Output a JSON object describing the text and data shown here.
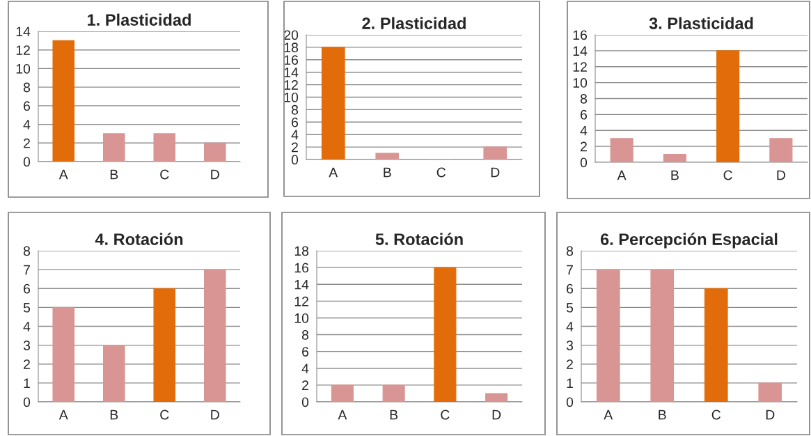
{
  "chart_data": [
    {
      "type": "bar",
      "title": "1. Plasticidad",
      "categories": [
        "A",
        "B",
        "C",
        "D"
      ],
      "values": [
        13,
        3,
        3,
        2
      ],
      "colors": [
        "#e36c0a",
        "#d99594",
        "#d99594",
        "#d99594"
      ],
      "ylim": [
        0,
        14
      ],
      "yticks": [
        0,
        2,
        4,
        6,
        8,
        10,
        12,
        14
      ],
      "grid": "y"
    },
    {
      "type": "bar",
      "title": "2. Plasticidad",
      "categories": [
        "A",
        "B",
        "C",
        "D"
      ],
      "values": [
        18,
        1,
        0,
        2
      ],
      "colors": [
        "#e36c0a",
        "#d99594",
        "#d99594",
        "#d99594"
      ],
      "ylim": [
        0,
        20
      ],
      "yticks": [
        0,
        2,
        4,
        6,
        8,
        10,
        12,
        14,
        16,
        18,
        20
      ],
      "grid": "y"
    },
    {
      "type": "bar",
      "title": "3. Plasticidad",
      "categories": [
        "A",
        "B",
        "C",
        "D"
      ],
      "values": [
        3,
        1,
        14,
        3
      ],
      "colors": [
        "#d99594",
        "#d99594",
        "#e36c0a",
        "#d99594"
      ],
      "ylim": [
        0,
        16
      ],
      "yticks": [
        0,
        2,
        4,
        6,
        8,
        10,
        12,
        14,
        16
      ],
      "grid": "y"
    },
    {
      "type": "bar",
      "title": "4. Rotación",
      "categories": [
        "A",
        "B",
        "C",
        "D"
      ],
      "values": [
        5,
        3,
        6,
        7
      ],
      "colors": [
        "#d99594",
        "#d99594",
        "#e36c0a",
        "#d99594"
      ],
      "ylim": [
        0,
        8
      ],
      "yticks": [
        0,
        1,
        2,
        3,
        4,
        5,
        6,
        7,
        8
      ],
      "grid": "y"
    },
    {
      "type": "bar",
      "title": "5. Rotación",
      "categories": [
        "A",
        "B",
        "C",
        "D"
      ],
      "values": [
        2,
        2,
        16,
        1
      ],
      "colors": [
        "#d99594",
        "#d99594",
        "#e36c0a",
        "#d99594"
      ],
      "ylim": [
        0,
        18
      ],
      "yticks": [
        0,
        2,
        4,
        6,
        8,
        10,
        12,
        14,
        16,
        18
      ],
      "grid": "y"
    },
    {
      "type": "bar",
      "title": "6. Percepción Espacial",
      "categories": [
        "A",
        "B",
        "C",
        "D"
      ],
      "values": [
        7,
        7,
        6,
        1
      ],
      "colors": [
        "#d99594",
        "#d99594",
        "#e36c0a",
        "#d99594"
      ],
      "ylim": [
        0,
        8
      ],
      "yticks": [
        0,
        1,
        2,
        3,
        4,
        5,
        6,
        7,
        8
      ],
      "grid": "y"
    }
  ]
}
